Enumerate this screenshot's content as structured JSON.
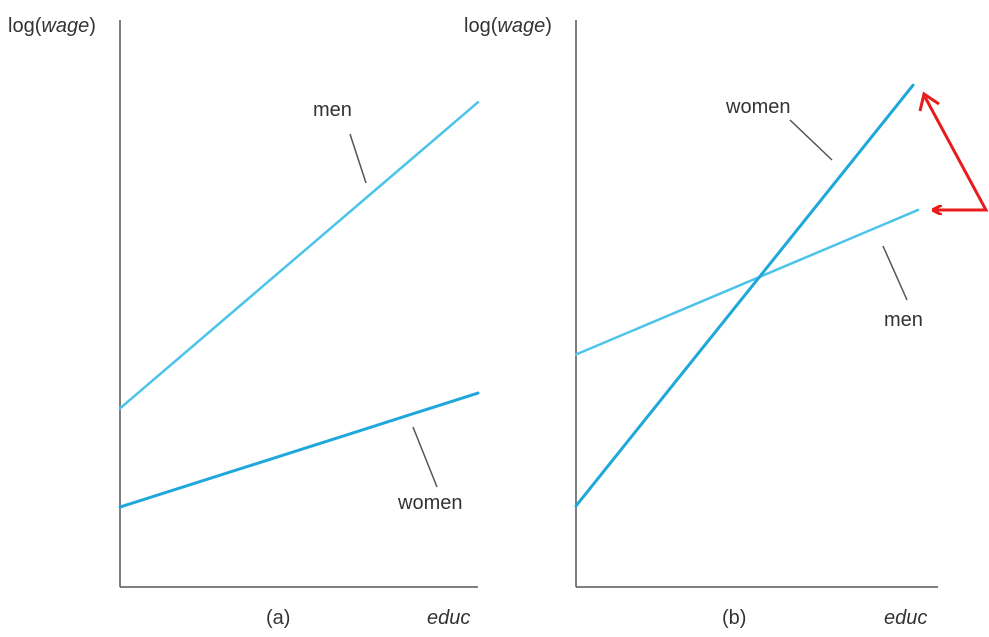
{
  "chart_data": [
    {
      "type": "line",
      "panel_label": "(a)",
      "ylabel_prefix": "log",
      "ylabel_var": "wage",
      "xlabel": "educ",
      "xlim": [
        0,
        1
      ],
      "ylim": [
        0,
        1
      ],
      "series": [
        {
          "name": "men",
          "x": [
            0,
            1
          ],
          "y": [
            0.315,
            0.855
          ],
          "color": "#4cc4ea",
          "stroke": 2.5
        },
        {
          "name": "women",
          "x": [
            0,
            1
          ],
          "y": [
            0.141,
            0.342
          ],
          "color": "#1fa7dc",
          "stroke": 3
        }
      ]
    },
    {
      "type": "line",
      "panel_label": "(b)",
      "ylabel_prefix": "log",
      "ylabel_var": "wage",
      "xlabel": "educ",
      "xlim": [
        0,
        1
      ],
      "ylim": [
        0,
        1
      ],
      "series": [
        {
          "name": "women",
          "x": [
            0,
            0.931
          ],
          "y": [
            0.143,
            0.885
          ],
          "color": "#1fa7dc",
          "stroke": 3
        },
        {
          "name": "men",
          "x": [
            0,
            0.945
          ],
          "y": [
            0.41,
            0.665
          ],
          "color": "#4cc4ea",
          "stroke": 2.5
        }
      ],
      "annotation": {
        "type": "double-arrow",
        "color": "#e81c1c"
      }
    }
  ]
}
